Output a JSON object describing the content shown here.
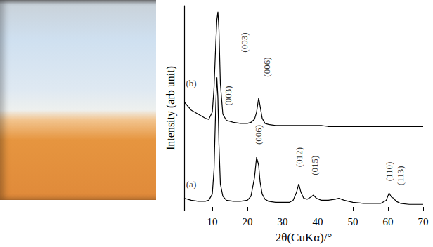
{
  "chart_data": {
    "type": "line",
    "x_label": "2θ(CuKα)/°",
    "y_label": "Intensity (arb unit)",
    "x": [
      2,
      4,
      6,
      8,
      9,
      10,
      10.5,
      11,
      11.3,
      11.6,
      11.9,
      12.3,
      13,
      14,
      16,
      18,
      20,
      21,
      22,
      22.6,
      23.2,
      23.6,
      24.2,
      25,
      26,
      28,
      30,
      32,
      33,
      34,
      34.6,
      35.2,
      36,
      37,
      38,
      38.8,
      39.6,
      41,
      43,
      45,
      46,
      47.5,
      50,
      53,
      56,
      58,
      59.5,
      60.3,
      61,
      61.6,
      62.3,
      63.5,
      66,
      70
    ],
    "series": [
      {
        "name": "(a)",
        "color": "#000000",
        "values": [
          6,
          5,
          4.5,
          4.5,
          5,
          8,
          20,
          52,
          65,
          55,
          32,
          13,
          7,
          5,
          4.5,
          4.5,
          5,
          7,
          16,
          26,
          22,
          14,
          8,
          5.5,
          4.5,
          4,
          4,
          4,
          5,
          9,
          13,
          9,
          6,
          5.5,
          6.5,
          7.5,
          6,
          5,
          5,
          5.5,
          6,
          5,
          4,
          3.5,
          3.5,
          3.5,
          5,
          8.5,
          6.5,
          6,
          4.5,
          3.5,
          3,
          3
        ]
      },
      {
        "name": "(b)",
        "color": "#000000",
        "values": [
          53,
          49,
          47,
          45,
          44.5,
          48,
          60,
          82,
          93,
          97,
          88,
          62,
          47,
          44,
          43,
          42.5,
          42.5,
          43,
          44.5,
          48,
          55,
          51,
          45,
          42.5,
          42,
          41.5,
          41.5,
          41.5,
          41.5,
          41.5,
          41.5,
          41.5,
          41.5,
          41.5,
          41.5,
          41.5,
          41.5,
          41.5,
          41,
          41,
          41,
          41,
          41,
          41,
          41,
          41,
          41,
          41,
          41,
          41,
          41,
          41,
          41,
          41
        ]
      }
    ],
    "xlim": [
      2,
      70
    ],
    "ylim": [
      0,
      100
    ],
    "xticks": [
      10,
      20,
      30,
      40,
      50,
      60,
      70
    ],
    "tick_labels": "x",
    "grid": false,
    "annotations": [
      {
        "text": "(a)",
        "x": 4,
        "y": 13
      },
      {
        "text": "(b)",
        "x": 4,
        "y": 62
      },
      {
        "text": "(003)",
        "x": 19,
        "y": 82
      },
      {
        "text": "(006)",
        "x": 25.5,
        "y": 70
      },
      {
        "text": "(003)",
        "x": 14.5,
        "y": 56
      },
      {
        "text": "(006)",
        "x": 23,
        "y": 37
      },
      {
        "text": "(012)",
        "x": 34.6,
        "y": 26
      },
      {
        "text": "(015)",
        "x": 39,
        "y": 22
      },
      {
        "text": "(110)",
        "x": 60.3,
        "y": 19
      },
      {
        "text": "(113)",
        "x": 63.5,
        "y": 17
      }
    ]
  }
}
